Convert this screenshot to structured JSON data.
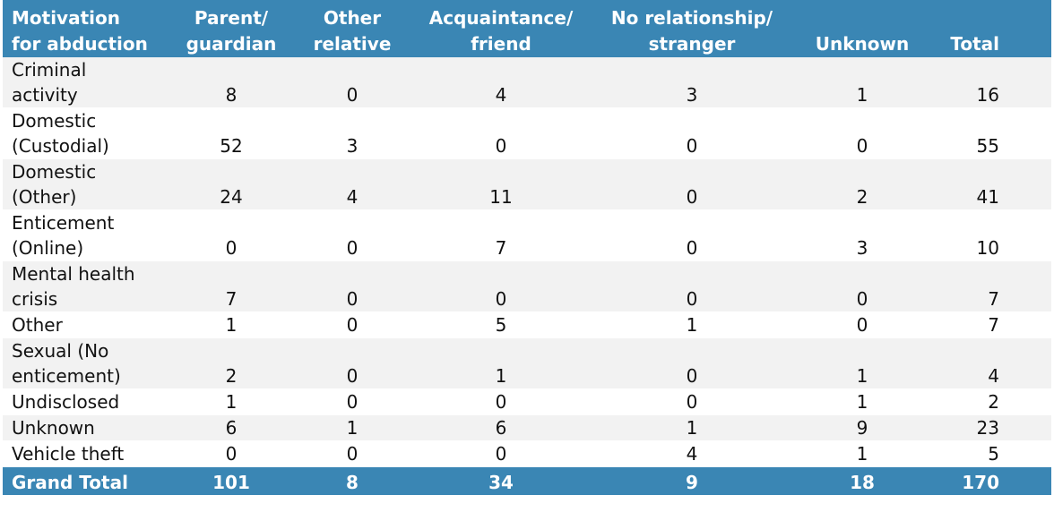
{
  "table": {
    "header": [
      [
        "Motivation",
        "for abduction"
      ],
      [
        "Parent/",
        "guardian"
      ],
      [
        "Other",
        "relative"
      ],
      [
        "Acquaintance/",
        "friend"
      ],
      [
        "No relationship/",
        "stranger"
      ],
      [
        "Unknown"
      ],
      [
        "Total"
      ]
    ],
    "rows": [
      {
        "label": [
          "Criminal",
          "activity"
        ],
        "values": [
          8,
          0,
          4,
          3,
          1,
          16
        ]
      },
      {
        "label": [
          "Domestic",
          "(Custodial)"
        ],
        "values": [
          52,
          3,
          0,
          0,
          0,
          55
        ]
      },
      {
        "label": [
          "Domestic",
          "(Other)"
        ],
        "values": [
          24,
          4,
          11,
          0,
          2,
          41
        ]
      },
      {
        "label": [
          "Enticement",
          "(Online)"
        ],
        "values": [
          0,
          0,
          7,
          0,
          3,
          10
        ]
      },
      {
        "label": [
          "Mental health",
          "crisis"
        ],
        "values": [
          7,
          0,
          0,
          0,
          0,
          7
        ]
      },
      {
        "label": [
          "Other"
        ],
        "values": [
          1,
          0,
          5,
          1,
          0,
          7
        ]
      },
      {
        "label": [
          "Sexual (No",
          "enticement)"
        ],
        "values": [
          2,
          0,
          1,
          0,
          1,
          4
        ]
      },
      {
        "label": [
          "Undisclosed"
        ],
        "values": [
          1,
          0,
          0,
          0,
          1,
          2
        ]
      },
      {
        "label": [
          "Unknown"
        ],
        "values": [
          6,
          1,
          6,
          1,
          9,
          23
        ]
      },
      {
        "label": [
          "Vehicle theft"
        ],
        "values": [
          0,
          0,
          0,
          4,
          1,
          5
        ]
      }
    ],
    "total": {
      "label": [
        "Grand Total"
      ],
      "values": [
        101,
        8,
        34,
        9,
        18,
        170
      ]
    }
  }
}
